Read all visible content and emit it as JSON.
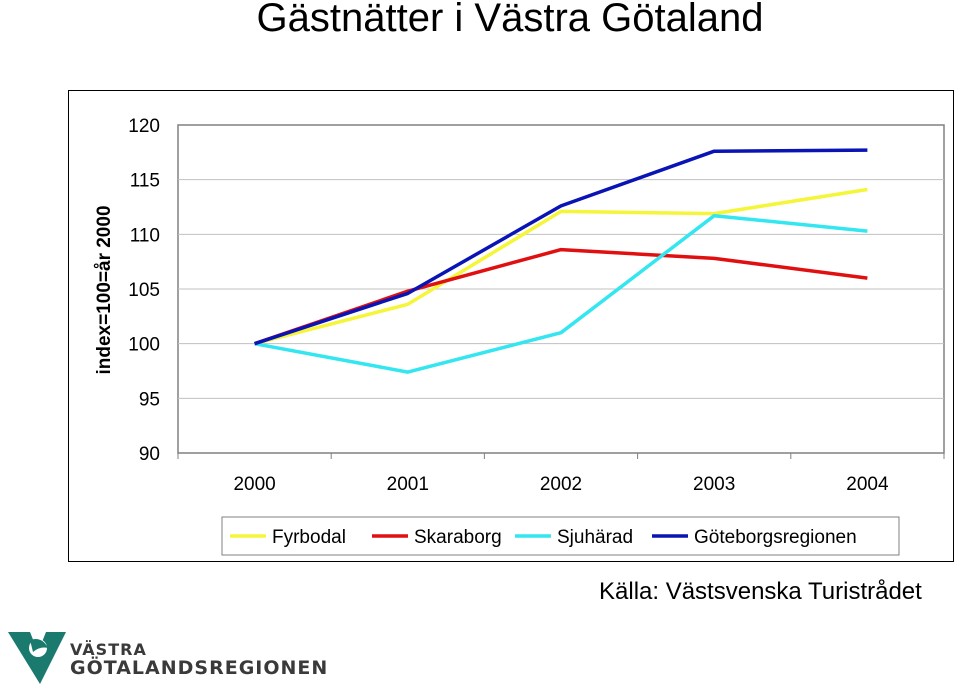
{
  "chart_data": {
    "type": "line",
    "title": "Gästnätter i Västra Götaland",
    "ylabel": "index=100=år 2000",
    "xlabel": "",
    "categories": [
      "2000",
      "2001",
      "2002",
      "2003",
      "2004"
    ],
    "ylim": [
      90,
      120
    ],
    "yticks": [
      "90",
      "95",
      "100",
      "105",
      "110",
      "115",
      "120"
    ],
    "grid": true,
    "legend_position": "bottom",
    "series": [
      {
        "name": "Fyrbodal",
        "color": "#f5f53a",
        "values": [
          100,
          103.6,
          112.1,
          111.9,
          114.1
        ]
      },
      {
        "name": "Skaraborg",
        "color": "#e01010",
        "values": [
          100,
          104.8,
          108.6,
          107.8,
          106.0
        ]
      },
      {
        "name": "Sjuhärad",
        "color": "#33e6f0",
        "values": [
          100,
          97.4,
          101.0,
          111.7,
          110.3
        ]
      },
      {
        "name": "Göteborgsregionen",
        "color": "#0a14b4",
        "values": [
          100,
          104.6,
          112.6,
          117.6,
          117.7
        ]
      }
    ]
  },
  "source_text": "Källa: Västsvenska Turistrådet",
  "logo": {
    "line1": "VÄSTRA",
    "line2": "GÖTALANDSREGIONEN",
    "color": "#1a7a6e"
  }
}
